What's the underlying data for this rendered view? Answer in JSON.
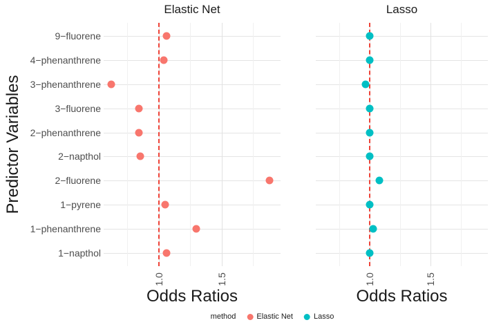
{
  "legend": {
    "title": "method",
    "items": [
      {
        "label": "Elastic Net",
        "color": "#F8766D"
      },
      {
        "label": "Lasso",
        "color": "#00BFC4"
      }
    ]
  },
  "chart_data": {
    "type": "scatter",
    "xlabel": "Odds Ratios",
    "ylabel": "Predictor Variables",
    "categories_top_to_bottom": [
      "9−fluorene",
      "4−phenanthrene",
      "3−phenanthrene",
      "3−fluorene",
      "2−phenanthrene",
      "2−napthol",
      "2−fluorene",
      "1−pyrene",
      "1−phenanthrene",
      "1−napthol"
    ],
    "facets": [
      {
        "label": "Elastic Net"
      },
      {
        "label": "Lasso"
      }
    ],
    "series": [
      {
        "name": "Elastic Net",
        "color": "#F8766D",
        "values": [
          1.06,
          1.04,
          0.62,
          0.84,
          0.84,
          0.85,
          1.88,
          1.05,
          1.3,
          1.06
        ]
      },
      {
        "name": "Lasso",
        "color": "#00BFC4",
        "values": [
          1.0,
          1.0,
          0.97,
          1.0,
          1.0,
          1.0,
          1.08,
          1.0,
          1.03,
          1.0
        ]
      }
    ],
    "x_domain": [
      0.56,
      1.97
    ],
    "x_major_ticks": [
      1.0,
      1.5
    ],
    "x_tick_labels": [
      "1.0",
      "1.5"
    ],
    "x_minor_ticks": [
      0.75,
      1.25,
      1.75
    ],
    "reference_line": {
      "x": 1.0,
      "color": "#ee4237",
      "style": "dashed"
    },
    "grid": true,
    "legend_position": "bottom"
  }
}
